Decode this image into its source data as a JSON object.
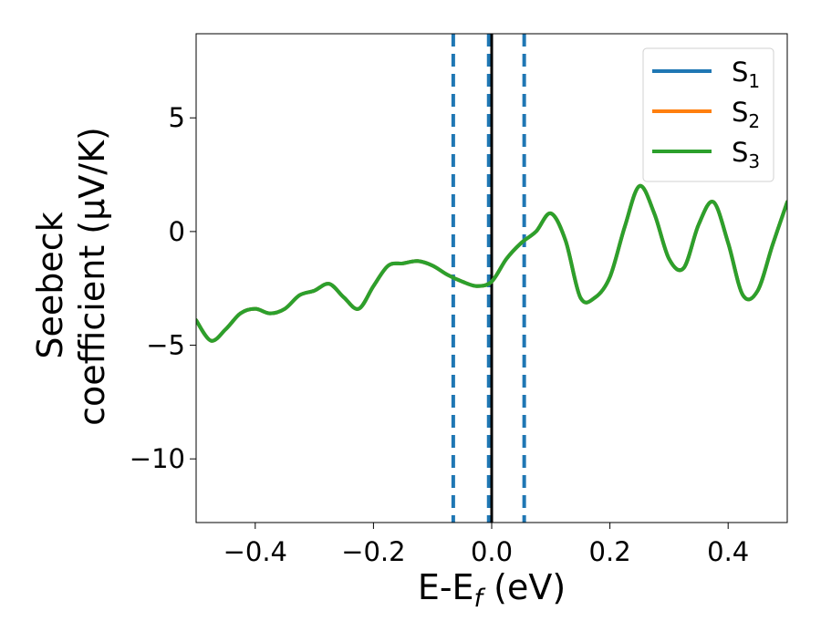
{
  "chart_data": {
    "type": "line",
    "title": "",
    "xlabel_main": "E-E",
    "xlabel_sub": "f",
    "xlabel_tail": " (eV)",
    "ylabel_line1": "Seebeck",
    "ylabel_line2": "coefficient  (μV/K)",
    "xlim": [
      -0.5,
      0.5
    ],
    "ylim": [
      -12.8,
      8.7
    ],
    "x_ticks": [
      -0.4,
      -0.2,
      0.0,
      0.2,
      0.4
    ],
    "x_tick_labels": [
      "−0.4",
      "−0.2",
      "0.0",
      "0.2",
      "0.4"
    ],
    "y_ticks": [
      -10,
      -5,
      0,
      5
    ],
    "y_tick_labels": [
      "−10",
      "−5",
      "0",
      "5"
    ],
    "grid": false,
    "legend_position": "top-right",
    "vertical_lines": [
      {
        "x": -0.065,
        "style": "dashed",
        "color": "#1f77b4"
      },
      {
        "x": -0.005,
        "style": "dashed",
        "color": "#1f77b4"
      },
      {
        "x": 0.055,
        "style": "dashed",
        "color": "#1f77b4"
      },
      {
        "x": 0.0,
        "style": "solid",
        "color": "#000000"
      }
    ],
    "series": [
      {
        "name": "S1",
        "label_main": "S",
        "label_sub": "1",
        "color": "#1f77b4",
        "x": [
          -0.5,
          -0.475,
          -0.45,
          -0.425,
          -0.4,
          -0.375,
          -0.35,
          -0.325,
          -0.3,
          -0.275,
          -0.25,
          -0.225,
          -0.2,
          -0.175,
          -0.15,
          -0.125,
          -0.1,
          -0.075,
          -0.05,
          -0.025,
          0.0,
          0.025,
          0.05,
          0.075,
          0.1,
          0.125,
          0.15,
          0.175,
          0.2,
          0.225,
          0.25,
          0.275,
          0.3,
          0.325,
          0.35,
          0.375,
          0.4,
          0.425,
          0.45,
          0.475,
          0.5
        ],
        "y": [
          -3.9,
          -4.8,
          -4.3,
          -3.6,
          -3.4,
          -3.6,
          -3.4,
          -2.8,
          -2.6,
          -2.3,
          -2.9,
          -3.4,
          -2.4,
          -1.5,
          -1.4,
          -1.3,
          -1.5,
          -1.9,
          -2.2,
          -2.4,
          -2.2,
          -1.2,
          -0.5,
          0.0,
          0.8,
          -0.4,
          -2.9,
          -2.9,
          -2.0,
          0.2,
          2.0,
          0.8,
          -1.2,
          -1.6,
          0.3,
          1.3,
          -0.5,
          -2.8,
          -2.6,
          -0.6,
          1.3
        ]
      },
      {
        "name": "S2",
        "label_main": "S",
        "label_sub": "2",
        "color": "#ff7f0e",
        "x": [
          -0.5,
          -0.475,
          -0.45,
          -0.425,
          -0.4,
          -0.375,
          -0.35,
          -0.325,
          -0.3,
          -0.275,
          -0.25,
          -0.225,
          -0.2,
          -0.175,
          -0.15,
          -0.125,
          -0.1,
          -0.075,
          -0.05,
          -0.025,
          0.0,
          0.025,
          0.05,
          0.075,
          0.1,
          0.125,
          0.15,
          0.175,
          0.2,
          0.225,
          0.25,
          0.275,
          0.3,
          0.325,
          0.35,
          0.375,
          0.4,
          0.425,
          0.45,
          0.475,
          0.5
        ],
        "y": [
          -3.9,
          -4.8,
          -4.3,
          -3.6,
          -3.4,
          -3.6,
          -3.4,
          -2.8,
          -2.6,
          -2.3,
          -2.9,
          -3.4,
          -2.4,
          -1.5,
          -1.4,
          -1.3,
          -1.5,
          -1.9,
          -2.2,
          -2.4,
          -2.2,
          -1.2,
          -0.5,
          0.0,
          0.8,
          -0.4,
          -2.9,
          -2.9,
          -2.0,
          0.2,
          2.0,
          0.8,
          -1.2,
          -1.6,
          0.3,
          1.3,
          -0.5,
          -2.8,
          -2.6,
          -0.6,
          1.3
        ]
      },
      {
        "name": "S3",
        "label_main": "S",
        "label_sub": "3",
        "color": "#2ca02c",
        "x": [
          -0.5,
          -0.475,
          -0.45,
          -0.425,
          -0.4,
          -0.375,
          -0.35,
          -0.325,
          -0.3,
          -0.275,
          -0.25,
          -0.225,
          -0.2,
          -0.175,
          -0.15,
          -0.125,
          -0.1,
          -0.075,
          -0.05,
          -0.025,
          0.0,
          0.025,
          0.05,
          0.075,
          0.1,
          0.125,
          0.15,
          0.175,
          0.2,
          0.225,
          0.25,
          0.275,
          0.3,
          0.325,
          0.35,
          0.375,
          0.4,
          0.425,
          0.45,
          0.475,
          0.5
        ],
        "y": [
          -3.9,
          -4.8,
          -4.3,
          -3.6,
          -3.4,
          -3.6,
          -3.4,
          -2.8,
          -2.6,
          -2.3,
          -2.9,
          -3.4,
          -2.4,
          -1.5,
          -1.4,
          -1.3,
          -1.5,
          -1.9,
          -2.2,
          -2.4,
          -2.2,
          -1.2,
          -0.5,
          0.0,
          0.8,
          -0.4,
          -2.9,
          -2.9,
          -2.0,
          0.2,
          2.0,
          0.8,
          -1.2,
          -1.6,
          0.3,
          1.3,
          -0.5,
          -2.8,
          -2.6,
          -0.6,
          1.3
        ]
      }
    ]
  }
}
